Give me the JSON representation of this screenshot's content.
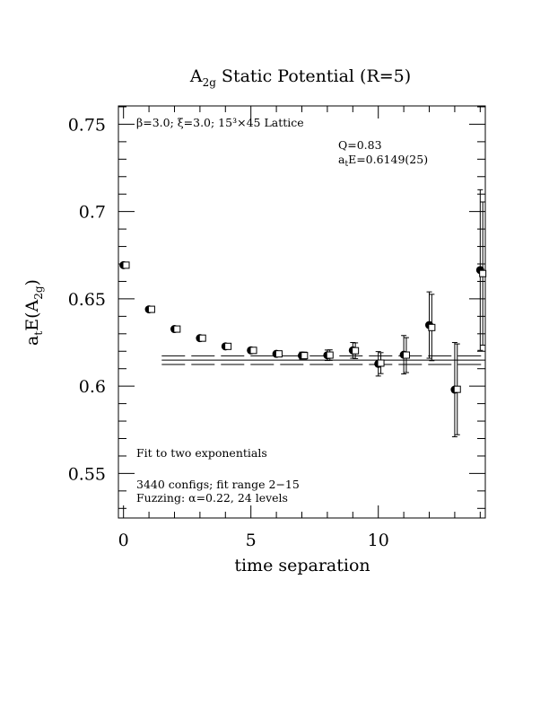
{
  "chart_data": {
    "type": "scatter",
    "title": {
      "main": "A",
      "sub": "2g",
      "rest": " Static Potential (R=5)"
    },
    "xlabel": "time separation",
    "ylabel": {
      "main": "a",
      "sub1": "t",
      "mid": "E(A",
      "sub2": "2g",
      "end": ")"
    },
    "xlim": [
      -0.2,
      14.2
    ],
    "ylim": [
      0.5245,
      0.7605
    ],
    "xticks": [
      0,
      5,
      10
    ],
    "yticks": [
      0.55,
      0.6,
      0.65,
      0.7,
      0.75
    ],
    "ytick_labels": [
      "0.55",
      "0.6",
      "0.65",
      "0.7",
      "0.75"
    ],
    "annotations": {
      "lattice": "β=3.0; ξ=3.0; 15³×45 Lattice",
      "q_value": "Q=0.83",
      "energy": {
        "prefix": "a",
        "sub": "t",
        "rest": "E=0.6149(25)"
      },
      "fit_desc": "Fit to two exponentials",
      "configs": "3440 configs; fit range 2−15",
      "fuzzing": "Fuzzing: α=0.22, 24 levels"
    },
    "fit": {
      "x_range": [
        1.5,
        14.2
      ],
      "center": 0.6149,
      "error": 0.0025
    },
    "series": [
      {
        "marker": "filled-circle",
        "x": [
          0,
          1,
          2,
          3,
          4,
          5,
          6,
          7,
          8,
          9,
          10,
          11,
          12,
          13,
          14
        ],
        "y": [
          0.6693,
          0.644,
          0.6327,
          0.6275,
          0.6228,
          0.6205,
          0.6185,
          0.6175,
          0.6177,
          0.6205,
          0.6128,
          0.618,
          0.635,
          0.598,
          0.6665
        ],
        "err": [
          0.0008,
          0.0008,
          0.001,
          0.001,
          0.0012,
          0.0013,
          0.0015,
          0.002,
          0.003,
          0.0045,
          0.007,
          0.011,
          0.019,
          0.027,
          0.046
        ]
      },
      {
        "marker": "open-square",
        "x": [
          0.1,
          1.1,
          2.1,
          3.1,
          4.1,
          5.1,
          6.1,
          7.1,
          8.1,
          9.1,
          10.1,
          11.1,
          12.1,
          13.1,
          14.1
        ],
        "y": [
          0.6693,
          0.644,
          0.6327,
          0.6275,
          0.6228,
          0.6205,
          0.6185,
          0.6175,
          0.6178,
          0.6203,
          0.6132,
          0.6178,
          0.6336,
          0.5982,
          0.6645
        ],
        "err": [
          0.0008,
          0.0008,
          0.001,
          0.001,
          0.0012,
          0.0013,
          0.0015,
          0.002,
          0.003,
          0.0045,
          0.006,
          0.01,
          0.019,
          0.026,
          0.041
        ]
      }
    ]
  }
}
